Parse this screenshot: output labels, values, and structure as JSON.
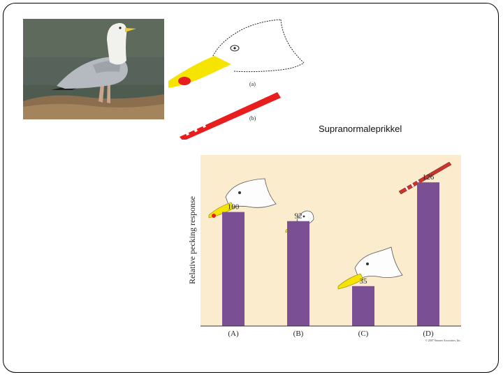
{
  "slide": {
    "title": "Supranormaleprikkel",
    "sketch_labels": [
      "(a)",
      "(b)"
    ]
  },
  "colors": {
    "bar": "#7a4f94",
    "chart_background": "#fbecce",
    "beak": "#f5e400",
    "spot": "#e81d1d",
    "stick": "#e81d1d"
  },
  "chart_data": {
    "type": "bar",
    "categories": [
      "(A)",
      "(B)",
      "(C)",
      "(D)"
    ],
    "values": [
      100,
      92,
      35,
      126
    ],
    "data_labels": [
      "100",
      "92",
      "35",
      "126"
    ],
    "ylabel": "Relative pecking response",
    "xlabel": "",
    "title": "",
    "ylim": [
      0,
      150
    ],
    "grid": false,
    "legend": "none",
    "credit": "© 2007 Sinauer Associates, Inc."
  }
}
